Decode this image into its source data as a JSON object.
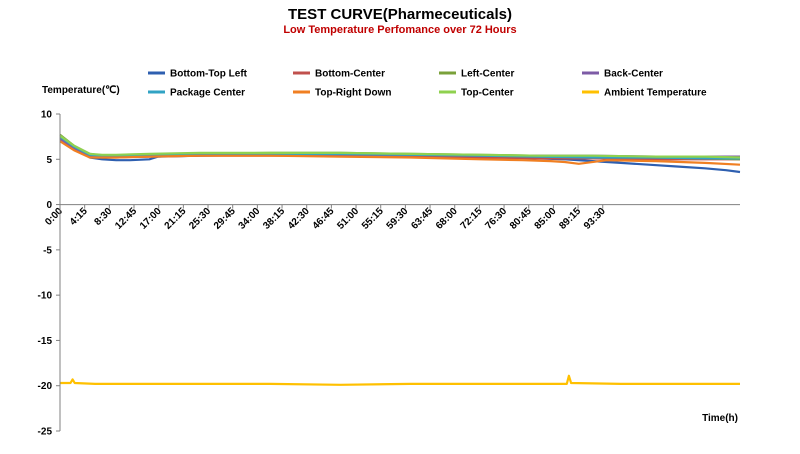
{
  "chart_data": {
    "type": "line",
    "title": "TEST CURVE(Pharmeceuticals)",
    "subtitle": "Low Temperature Perfomance over 72 Hours",
    "xlabel": "Time(h)",
    "ylabel": "Temperature(℃)",
    "ylim": [
      -25,
      10
    ],
    "yticks": [
      10,
      5,
      0,
      -5,
      -10,
      -15,
      -20,
      -25
    ],
    "xlim_hours": [
      0,
      97
    ],
    "xticks": [
      "0:00",
      "4:15",
      "8:30",
      "12:45",
      "17:00",
      "21:15",
      "25:30",
      "29:45",
      "34:00",
      "38:15",
      "42:30",
      "46:45",
      "51:00",
      "55:15",
      "59:30",
      "63:45",
      "68:00",
      "72:15",
      "76:30",
      "80:45",
      "85:00",
      "89:15",
      "93:30"
    ],
    "grid": false,
    "legend_position": "top",
    "x_unit": "hours",
    "series": [
      {
        "name": "Bottom-Top Left",
        "color": "#2e5fb0",
        "x": [
          0,
          2,
          4.25,
          6,
          8,
          10,
          12.75,
          14,
          20,
          30,
          40,
          50,
          60,
          68,
          72,
          76,
          80,
          84,
          88,
          92,
          95,
          97
        ],
        "y": [
          7.4,
          6.3,
          5.2,
          5.0,
          4.9,
          4.9,
          5.0,
          5.3,
          5.4,
          5.5,
          5.5,
          5.4,
          5.3,
          5.1,
          5.0,
          4.8,
          4.6,
          4.4,
          4.2,
          4.0,
          3.8,
          3.6
        ]
      },
      {
        "name": "Bottom-Center",
        "color": "#c0504d",
        "x": [
          0,
          2,
          4.25,
          6,
          8,
          12.75,
          20,
          30,
          40,
          50,
          60,
          68,
          76,
          85,
          92,
          97
        ],
        "y": [
          7.1,
          6.1,
          5.3,
          5.2,
          5.2,
          5.3,
          5.4,
          5.4,
          5.4,
          5.3,
          5.2,
          5.1,
          5.1,
          5.0,
          5.0,
          5.0
        ]
      },
      {
        "name": "Left-Center",
        "color": "#7aa13a",
        "x": [
          0,
          2,
          4.25,
          6,
          8,
          12.75,
          20,
          30,
          40,
          50,
          60,
          68,
          76,
          85,
          92,
          97
        ],
        "y": [
          7.7,
          6.5,
          5.6,
          5.4,
          5.4,
          5.5,
          5.6,
          5.7,
          5.7,
          5.6,
          5.5,
          5.4,
          5.3,
          5.2,
          5.1,
          5.0
        ]
      },
      {
        "name": "Back-Center",
        "color": "#7d5ba6",
        "x": [
          0,
          2,
          4.25,
          6,
          8,
          12.75,
          20,
          30,
          40,
          50,
          60,
          68,
          76,
          85,
          92,
          97
        ],
        "y": [
          7.3,
          6.2,
          5.4,
          5.3,
          5.3,
          5.4,
          5.5,
          5.5,
          5.5,
          5.5,
          5.4,
          5.4,
          5.4,
          5.3,
          5.3,
          5.3
        ]
      },
      {
        "name": "Package Center",
        "color": "#31a3c4",
        "x": [
          0,
          2,
          4.25,
          6,
          8,
          12.75,
          20,
          30,
          40,
          50,
          60,
          68,
          76,
          85,
          92,
          97
        ],
        "y": [
          7.5,
          6.4,
          5.5,
          5.4,
          5.4,
          5.5,
          5.6,
          5.6,
          5.6,
          5.5,
          5.4,
          5.3,
          5.2,
          5.2,
          5.1,
          5.1
        ]
      },
      {
        "name": "Top-Right Down",
        "color": "#f07f22",
        "x": [
          0,
          2,
          4.25,
          6,
          8,
          12.75,
          20,
          30,
          40,
          50,
          60,
          66,
          70,
          72,
          74,
          78,
          85,
          92,
          97
        ],
        "y": [
          7.0,
          6.0,
          5.2,
          5.2,
          5.2,
          5.3,
          5.4,
          5.4,
          5.3,
          5.2,
          5.0,
          4.9,
          4.8,
          4.7,
          4.5,
          4.9,
          4.8,
          4.6,
          4.4
        ]
      },
      {
        "name": "Top-Center",
        "color": "#8fd14f",
        "x": [
          0,
          2,
          4.25,
          6,
          8,
          12.75,
          20,
          30,
          40,
          50,
          60,
          68,
          76,
          85,
          92,
          97
        ],
        "y": [
          7.6,
          6.5,
          5.6,
          5.5,
          5.5,
          5.6,
          5.7,
          5.7,
          5.7,
          5.6,
          5.5,
          5.4,
          5.4,
          5.3,
          5.3,
          5.2
        ]
      },
      {
        "name": "Ambient Temperature",
        "color": "#ffc000",
        "x": [
          0,
          1.5,
          1.8,
          2.1,
          5,
          10,
          20,
          30,
          40,
          50,
          60,
          70,
          72.3,
          72.6,
          72.9,
          80,
          90,
          97
        ],
        "y": [
          -19.7,
          -19.7,
          -19.3,
          -19.7,
          -19.8,
          -19.8,
          -19.8,
          -19.8,
          -19.9,
          -19.8,
          -19.8,
          -19.8,
          -19.8,
          -18.9,
          -19.7,
          -19.8,
          -19.8,
          -19.8
        ]
      }
    ]
  }
}
